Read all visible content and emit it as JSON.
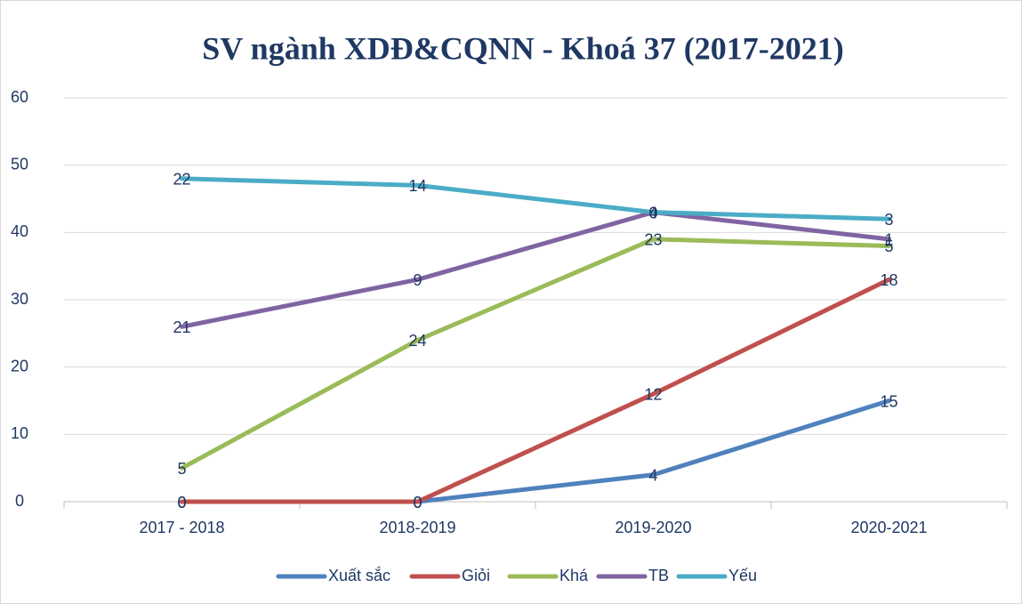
{
  "chart_data": {
    "type": "line",
    "stacked": true,
    "title": "SV ngành XDĐ&CQNN - Khoá 37 (2017-2021)",
    "categories": [
      "2017 - 2018",
      "2018-2019",
      "2019-2020",
      "2020-2021"
    ],
    "series": [
      {
        "name": "Xuất sắc",
        "color": "#4f81bd",
        "values": [
          0,
          0,
          4,
          15
        ]
      },
      {
        "name": "Giỏi",
        "color": "#c0504d",
        "values": [
          0,
          0,
          12,
          18
        ]
      },
      {
        "name": "Khá",
        "color": "#9bbb59",
        "values": [
          5,
          24,
          23,
          5
        ]
      },
      {
        "name": "TB",
        "color": "#8064a2",
        "values": [
          21,
          9,
          4,
          1
        ]
      },
      {
        "name": "Yếu",
        "color": "#4bacc6",
        "values": [
          22,
          14,
          0,
          3
        ]
      }
    ],
    "ylim": [
      0,
      60
    ],
    "yticks": [
      0,
      10,
      20,
      30,
      40,
      50,
      60
    ],
    "grid": true,
    "legend": "bottom"
  }
}
